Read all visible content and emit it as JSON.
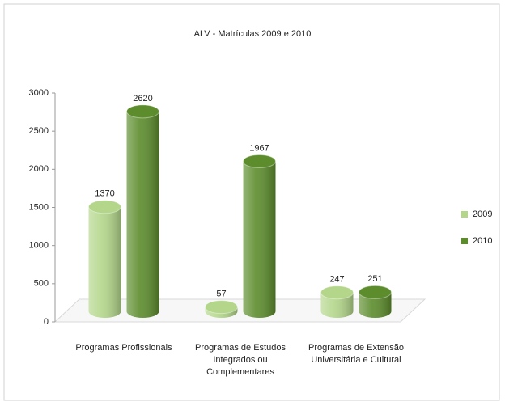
{
  "chart_data": {
    "type": "bar3d",
    "title": "ALV - Matrículas 2009 e 2010",
    "categories": [
      "Programas Profissionais",
      "Programas de Estudos Integrados ou Complementares",
      "Programas de Extensão Universitária e Cultural"
    ],
    "series": [
      {
        "name": "2009",
        "color": "#b3d68a",
        "values": [
          1370,
          57,
          247
        ]
      },
      {
        "name": "2010",
        "color": "#5c8c2c",
        "values": [
          2620,
          1967,
          251
        ]
      }
    ],
    "ylim": [
      0,
      3000
    ],
    "yticks": [
      0,
      500,
      1000,
      1500,
      2000,
      2500,
      3000
    ],
    "legend": "right"
  }
}
